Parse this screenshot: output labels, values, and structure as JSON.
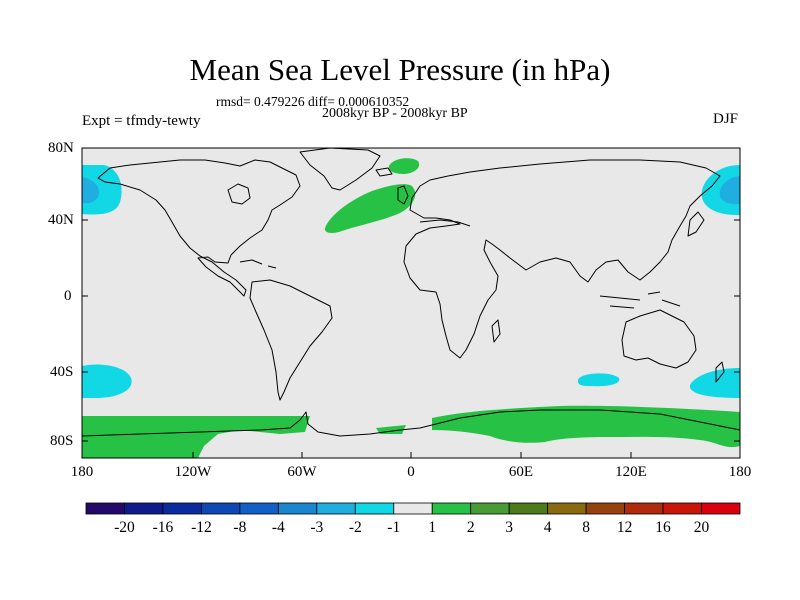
{
  "map": {
    "title": "Mean Sea Level Pressure (in hPa)",
    "stats": "rmsd= 0.479226 diff= 0.000610352",
    "period": "2008kyr BP - 2008kyr BP",
    "experiment": "Expt = tfmdy-tewty",
    "season": "DJF",
    "projection": "cylindrical equidistant",
    "lon_range": [
      -180,
      180
    ],
    "lat_range": [
      -90,
      90
    ],
    "lat_labels": [
      "80N",
      "40N",
      "0",
      "40S",
      "80S"
    ],
    "lon_labels": [
      "180",
      "120W",
      "60W",
      "0",
      "60E",
      "120E",
      "180"
    ]
  },
  "colorbar": {
    "labels": [
      "-20",
      "-16",
      "-12",
      "-8",
      "-4",
      "-3",
      "-2",
      "-1",
      "1",
      "2",
      "3",
      "4",
      "8",
      "12",
      "16",
      "20"
    ],
    "colors": [
      "#24096b",
      "#0f1a8c",
      "#0c2aa0",
      "#0f47b5",
      "#1060c8",
      "#1a86cf",
      "#20aee0",
      "#12d8e6",
      "#e8e8e8",
      "#27c245",
      "#4a9a35",
      "#4d7a1b",
      "#8a6a10",
      "#96420d",
      "#b02a0c",
      "#c91608",
      "#d90010"
    ]
  },
  "anomaly_regions": [
    {
      "name": "positive",
      "color": "#27c245"
    },
    {
      "name": "negative",
      "color": "#12d8e6"
    },
    {
      "name": "strong-negative",
      "color": "#20aee0"
    }
  ]
}
